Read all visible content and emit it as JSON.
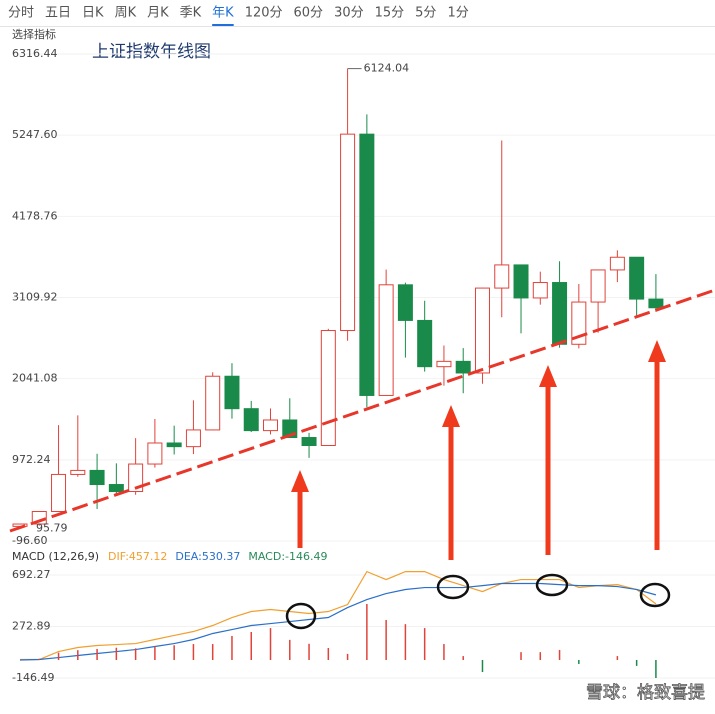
{
  "tabs": [
    "分时",
    "五日",
    "日K",
    "周K",
    "月K",
    "季K",
    "年K",
    "120分",
    "60分",
    "30分",
    "15分",
    "5分",
    "1分"
  ],
  "selected_tab": 6,
  "indicator_label": "选择指标",
  "watermark": "雪球：格致喜提",
  "chart_data": [
    {
      "type": "candlestick",
      "title": "上证指数年线图",
      "up_color": "#e0433a",
      "down_color": "#1a8a4a",
      "open": [
        96.05,
        127,
        292,
        780,
        833,
        647,
        555,
        917,
        1194,
        1146,
        1366,
        2073,
        1646,
        1357,
        1497,
        1266,
        1161,
        2675,
        5261,
        1820,
        3277,
        2808,
        2199,
        2269,
        2116,
        3234,
        3539,
        3104,
        3307,
        2494,
        3050,
        3473,
        3640,
        3089
      ],
      "high": [
        127,
        292,
        1429,
        1558,
        1052,
        926,
        1258,
        1510,
        1422,
        1756,
        2125,
        2245,
        1748,
        1649,
        1783,
        1328,
        2698,
        6124.04,
        5522,
        3478,
        3306,
        3067,
        2478,
        2444,
        3239,
        5178,
        3538,
        3450,
        3587,
        3288,
        3474,
        3731,
        3639,
        3418
      ],
      "low": [
        95.79,
        105,
        292,
        750,
        325,
        524,
        512,
        870,
        1043,
        1047,
        1361,
        1514,
        1339,
        1307,
        1259,
        998,
        1161,
        2541,
        1664,
        1814,
        2319,
        2134,
        1949,
        1849,
        1974,
        2850,
        2638,
        3016,
        2449,
        2440,
        2646,
        3312,
        2863,
        2923
      ],
      "close": [
        127,
        292,
        780,
        833,
        647,
        555,
        917,
        1194,
        1146,
        1366,
        2073,
        1646,
        1357,
        1497,
        1266,
        1161,
        2675,
        5261,
        1820,
        3277,
        2808,
        2199,
        2269,
        2116,
        3234,
        3539,
        3104,
        3307,
        2494,
        3050,
        3473,
        3640,
        3089,
        2975
      ],
      "annotations": [
        {
          "index": 17,
          "text": 6124.04
        },
        {
          "index": 0,
          "text": 95.79
        }
      ],
      "ylim": [
        -96.6,
        6316.44
      ],
      "yticks": [
        6316.44,
        {
          "value": 5247.6,
          "label": "5247.60"
        },
        4178.76,
        3109.92,
        2041.08,
        972.24,
        {
          "value": -96.6,
          "label": "-96.60"
        }
      ]
    },
    {
      "type": "macd",
      "title": "MACD (12,26,9)",
      "series": [
        {
          "name": "DIF:457.12",
          "color": "#f0a030",
          "values": [
            4,
            4,
            69,
            102,
            118,
            126,
            134,
            167,
            200,
            232,
            281,
            346,
            395,
            411,
            395,
            379,
            395,
            452,
            720,
            655,
            720,
            720,
            655,
            606,
            557,
            623,
            655,
            655,
            655,
            590,
            606,
            614,
            574,
            457.12
          ]
        },
        {
          "name": "DEA:530.37",
          "color": "#2a6fc9",
          "values": [
            0,
            4,
            20,
            37,
            53,
            69,
            85,
            110,
            134,
            167,
            216,
            248,
            281,
            297,
            313,
            330,
            346,
            427,
            492,
            541,
            574,
            590,
            590,
            590,
            606,
            623,
            623,
            623,
            614,
            606,
            606,
            598,
            574,
            530.37
          ]
        },
        {
          "name": "MACD:-146.49",
          "color": "#e0433a",
          "down_color": "#1a8a4a",
          "bars": true,
          "values": [
            0,
            10,
            60,
            80,
            90,
            100,
            95,
            110,
            120,
            130,
            130,
            196,
            228,
            260,
            164,
            132,
            98,
            50,
            456,
            326,
            292,
            260,
            130,
            32,
            -98,
            0,
            64,
            64,
            82,
            -32,
            0,
            32,
            -48,
            -146.49
          ]
        }
      ],
      "ylim": [
        -146.49,
        692.27
      ],
      "yticks": [
        692.27,
        272.89,
        -146.49
      ]
    }
  ]
}
